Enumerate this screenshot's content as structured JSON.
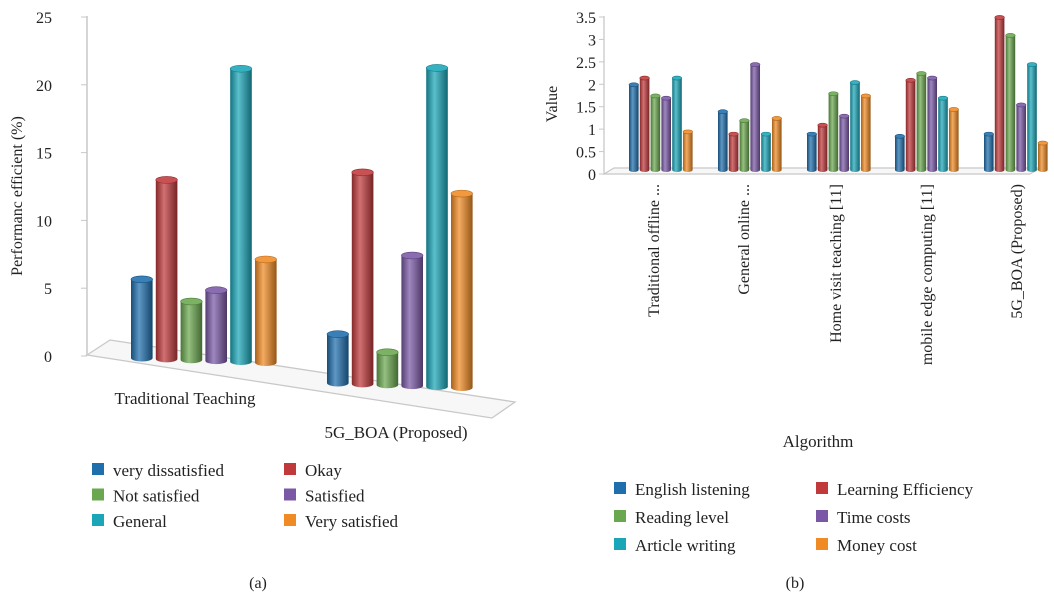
{
  "chart_data": [
    {
      "type": "bar",
      "panel_label": "(a)",
      "categories": [
        "Traditional Teaching",
        "5G_BOA (Proposed)"
      ],
      "ylabel": "Performanc efficient (%)",
      "ylim": [
        0,
        25
      ],
      "yticks": [
        "0",
        "5",
        "10",
        "15",
        "20",
        "25"
      ],
      "grid": false,
      "legend_position": "bottom",
      "series": [
        {
          "name": "very dissatisfied",
          "color": "#1f6fad",
          "values": [
            5.8,
            3.6
          ]
        },
        {
          "name": "Okay",
          "color": "#c0393b",
          "values": [
            13.2,
            15.6
          ]
        },
        {
          "name": "Not satisfied",
          "color": "#6aa84f",
          "values": [
            4.3,
            2.4
          ]
        },
        {
          "name": "Satisfied",
          "color": "#7a58a6",
          "values": [
            5.2,
            9.6
          ]
        },
        {
          "name": "General",
          "color": "#1ba6b8",
          "values": [
            21.6,
            23.5
          ]
        },
        {
          "name": "Very satisfied",
          "color": "#f08a24",
          "values": [
            7.6,
            14.3
          ]
        }
      ]
    },
    {
      "type": "bar",
      "panel_label": "(b)",
      "categories": [
        "Traditional offline ...",
        "General online ...",
        "Home visit teaching [11]",
        "mobile edge computing [11]",
        "5G_BOA (Proposed)"
      ],
      "xlabel": "Algorithm",
      "ylabel": "Value",
      "ylim": [
        0,
        3.5
      ],
      "yticks": [
        "0",
        "0.5",
        "1",
        "1.5",
        "2",
        "2.5",
        "3",
        "3.5"
      ],
      "grid": false,
      "legend_position": "bottom",
      "series": [
        {
          "name": "English listening",
          "color": "#1f6fad",
          "values": [
            1.9,
            1.3,
            0.8,
            0.75,
            0.8
          ]
        },
        {
          "name": "Learning Efficiency",
          "color": "#c0393b",
          "values": [
            2.05,
            0.8,
            1.0,
            2.0,
            3.4
          ]
        },
        {
          "name": "Reading level",
          "color": "#6aa84f",
          "values": [
            1.65,
            1.1,
            1.7,
            2.15,
            3.0
          ]
        },
        {
          "name": "Time costs",
          "color": "#7a58a6",
          "values": [
            1.6,
            2.35,
            1.2,
            2.05,
            1.45
          ]
        },
        {
          "name": "Article writing",
          "color": "#1ba6b8",
          "values": [
            2.05,
            0.8,
            1.95,
            1.6,
            2.35
          ]
        },
        {
          "name": "Money cost",
          "color": "#f08a24",
          "values": [
            0.85,
            1.15,
            1.65,
            1.35,
            0.6
          ]
        }
      ]
    }
  ]
}
